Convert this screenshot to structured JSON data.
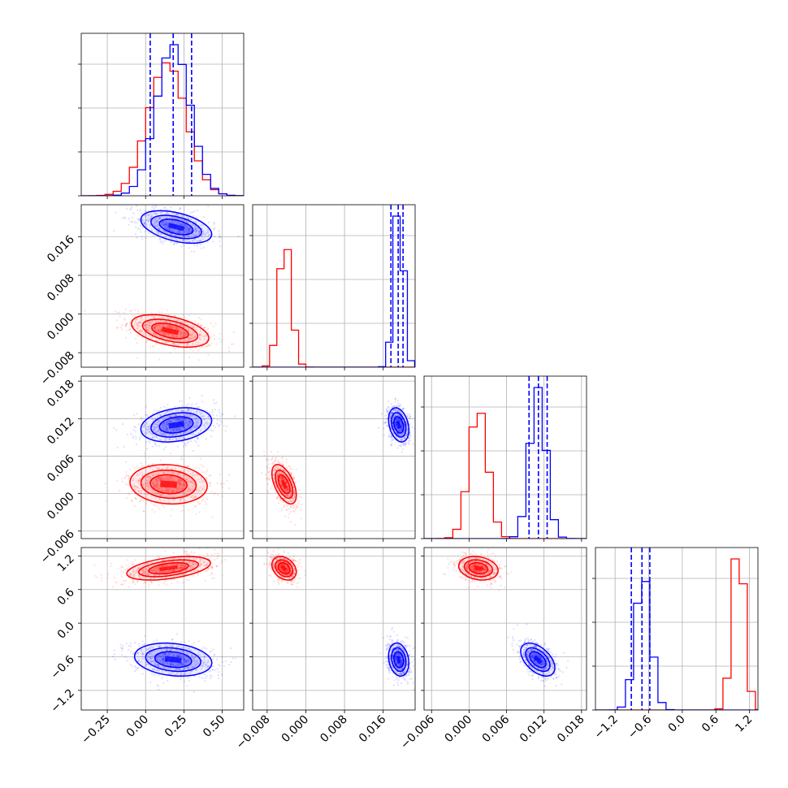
{
  "chart_data": {
    "type": "corner",
    "title": "",
    "grid": true,
    "series": [
      {
        "color": "#ff0000"
      },
      {
        "color": "#0000ff"
      }
    ],
    "parameters": [
      {
        "range": [
          -0.42,
          0.64
        ],
        "ticks": [
          -0.25,
          0.0,
          0.25,
          0.5
        ],
        "tick_labels": [
          "−0.25",
          "0.00",
          "0.25",
          "0.50"
        ]
      },
      {
        "range": [
          -0.011,
          0.0226
        ],
        "ticks": [
          -0.008,
          0.0,
          0.008,
          0.016
        ],
        "tick_labels": [
          "−0.008",
          "0.000",
          "0.008",
          "0.016"
        ]
      },
      {
        "range": [
          -0.0072,
          0.0188
        ],
        "ticks": [
          -0.006,
          0.0,
          0.006,
          0.012,
          0.018
        ],
        "tick_labels": [
          "−0.006",
          "0.000",
          "0.006",
          "0.012",
          "0.018"
        ]
      },
      {
        "range": [
          -1.55,
          1.35
        ],
        "ticks": [
          -1.2,
          -0.6,
          0.0,
          0.6,
          1.2
        ],
        "tick_labels": [
          "−1.2",
          "−0.6",
          "0.0",
          "0.6",
          "1.2"
        ]
      }
    ],
    "marginals": [
      {
        "bin_width": 0.053,
        "red": {
          "mean": 0.14,
          "sd": 0.125
        },
        "blue": {
          "mean": 0.18,
          "sd": 0.11,
          "quantiles": [
            0.03,
            0.18,
            0.3
          ]
        }
      },
      {
        "bin_width": 0.0015,
        "red": {
          "mean": -0.0043,
          "sd": 0.0013
        },
        "blue": {
          "mean": 0.0192,
          "sd": 0.001,
          "quantiles": [
            0.0176,
            0.0191,
            0.0201
          ]
        }
      },
      {
        "bin_width": 0.0013,
        "red": {
          "mean": 0.0015,
          "sd": 0.0015
        },
        "blue": {
          "mean": 0.011,
          "sd": 0.0013,
          "quantiles": [
            0.0096,
            0.0111,
            0.0125
          ]
        }
      },
      {
        "bin_width": 0.145,
        "red": {
          "mean": 1.0,
          "sd": 0.11
        },
        "blue": {
          "mean": -0.7,
          "sd": 0.14,
          "quantiles": [
            -0.91,
            -0.72,
            -0.58
          ]
        }
      }
    ],
    "pairs": [
      {
        "row": 1,
        "col": 0,
        "red": {
          "mean": [
            0.16,
            -0.0035
          ],
          "sd": [
            0.12,
            0.0016
          ],
          "rho": -0.45
        },
        "blue": {
          "mean": [
            0.2,
            0.018
          ],
          "sd": [
            0.11,
            0.0016
          ],
          "rho": -0.45
        }
      },
      {
        "row": 2,
        "col": 0,
        "red": {
          "mean": [
            0.15,
            0.0015
          ],
          "sd": [
            0.12,
            0.0015
          ],
          "rho": -0.1
        },
        "blue": {
          "mean": [
            0.2,
            0.011
          ],
          "sd": [
            0.11,
            0.0013
          ],
          "rho": 0.25
        }
      },
      {
        "row": 2,
        "col": 1,
        "red": {
          "mean": [
            -0.0045,
            0.0015
          ],
          "sd": [
            0.0012,
            0.0015
          ],
          "rho": -0.55
        },
        "blue": {
          "mean": [
            0.0192,
            0.011
          ],
          "sd": [
            0.001,
            0.0013
          ],
          "rho": -0.3
        }
      },
      {
        "row": 3,
        "col": 0,
        "red": {
          "mean": [
            0.15,
            0.98
          ],
          "sd": [
            0.13,
            0.1
          ],
          "rho": 0.45
        },
        "blue": {
          "mean": [
            0.18,
            -0.65
          ],
          "sd": [
            0.12,
            0.14
          ],
          "rho": -0.2
        }
      },
      {
        "row": 3,
        "col": 1,
        "red": {
          "mean": [
            -0.0045,
            0.98
          ],
          "sd": [
            0.0012,
            0.1
          ],
          "rho": -0.3
        },
        "blue": {
          "mean": [
            0.0192,
            -0.65
          ],
          "sd": [
            0.001,
            0.14
          ],
          "rho": -0.2
        }
      },
      {
        "row": 3,
        "col": 2,
        "red": {
          "mean": [
            0.0015,
            0.98
          ],
          "sd": [
            0.0015,
            0.1
          ],
          "rho": -0.2
        },
        "blue": {
          "mean": [
            0.011,
            -0.65
          ],
          "sd": [
            0.0013,
            0.14
          ],
          "rho": -0.5
        }
      }
    ]
  }
}
